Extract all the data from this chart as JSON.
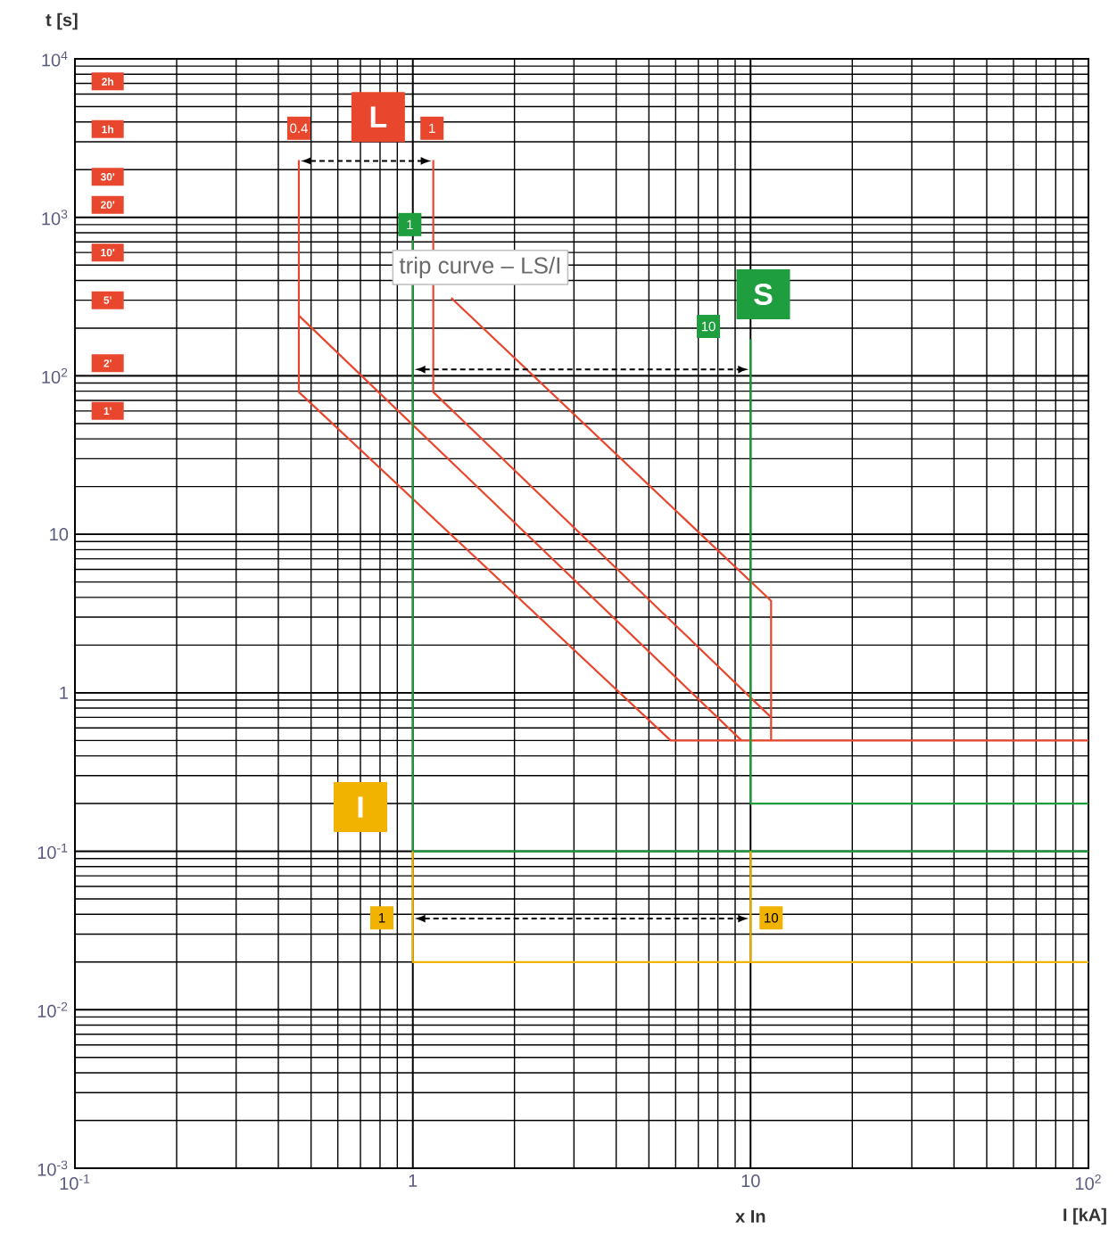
{
  "chart_data": {
    "type": "line",
    "title": "trip curve – LS/I",
    "xlabel": "I [kA]",
    "ylabel": "t [s]",
    "log": "xy",
    "grid": true,
    "marker": "none",
    "line_style": "solid",
    "xlim": [
      0.1,
      100
    ],
    "ylim": [
      0.001,
      10000
    ],
    "xticks": [
      {
        "value": 0.1,
        "label": "10$^{-1}$"
      },
      1,
      10,
      {
        "value": 100,
        "label": "10$^{2}$"
      }
    ],
    "yticks": [
      {
        "value": 0.001,
        "label": "10$^{-3}$"
      },
      {
        "value": 0.01,
        "label": "10$^{-2}$"
      },
      {
        "value": 0.1,
        "label": "10$^{-1}$"
      },
      1,
      10,
      {
        "value": 100,
        "label": "10$^{2}$"
      },
      {
        "value": 1000,
        "label": "10$^{3}$"
      },
      {
        "value": 10000,
        "label": "10$^{4}$"
      }
    ],
    "series": [
      {
        "color": "#e8472e",
        "x": [
          0.46,
          0.46,
          5.8,
          100
        ],
        "values": [
          2300,
          79,
          0.5,
          0.5
        ]
      },
      {
        "color": "#e8472e",
        "x": [
          0.46,
          9.4
        ],
        "values": [
          240,
          0.5
        ]
      },
      {
        "color": "#e8472e",
        "x": [
          1.15,
          1.15,
          11.5
        ],
        "values": [
          2300,
          79,
          0.7
        ]
      },
      {
        "color": "#e8472e",
        "x": [
          1.3,
          11.5,
          11.5
        ],
        "values": [
          310,
          3.8,
          0.5
        ]
      },
      {
        "color": "#1e9e3e",
        "x": [
          1,
          1,
          100
        ],
        "values": [
          720,
          0.1,
          0.1
        ]
      },
      {
        "color": "#1e9e3e",
        "x": [
          10,
          10,
          100
        ],
        "values": [
          170,
          0.2,
          0.2
        ]
      },
      {
        "color": "#f2b200",
        "x": [
          1,
          1,
          100
        ],
        "values": [
          0.1,
          0.02,
          0.02
        ]
      },
      {
        "color": "#f2b200",
        "x": [
          10,
          10
        ],
        "values": [
          0.1,
          0.02
        ]
      }
    ],
    "annotations": [
      {
        "text": "2h",
        "x": 0.125,
        "y": 7200
      },
      {
        "text": "1h",
        "x": 0.125,
        "y": 3600
      },
      {
        "text": "30'",
        "x": 0.125,
        "y": 1800
      },
      {
        "text": "20'",
        "x": 0.125,
        "y": 1200
      },
      {
        "text": "10'",
        "x": 0.125,
        "y": 600
      },
      {
        "text": "5'",
        "x": 0.125,
        "y": 300
      },
      {
        "text": "2'",
        "x": 0.125,
        "y": 120
      },
      {
        "text": "1'",
        "x": 0.125,
        "y": 60
      },
      {
        "text": "0.4",
        "x": 0.46,
        "y": 3650
      },
      {
        "text": "L",
        "x": 0.79,
        "y": 4300
      },
      {
        "text": "1",
        "x": 1.14,
        "y": 3650
      },
      {
        "text": "1",
        "x": 0.98,
        "y": 900
      },
      {
        "text": "S",
        "x": 10.9,
        "y": 327
      },
      {
        "text": "10",
        "x": 7.5,
        "y": 205
      },
      {
        "text": "I",
        "x": 0.7,
        "y": 0.19
      },
      {
        "text": "1",
        "x": 0.81,
        "y": 0.038
      },
      {
        "text": "10",
        "x": 11.5,
        "y": 0.038
      },
      "x In"
    ]
  }
}
